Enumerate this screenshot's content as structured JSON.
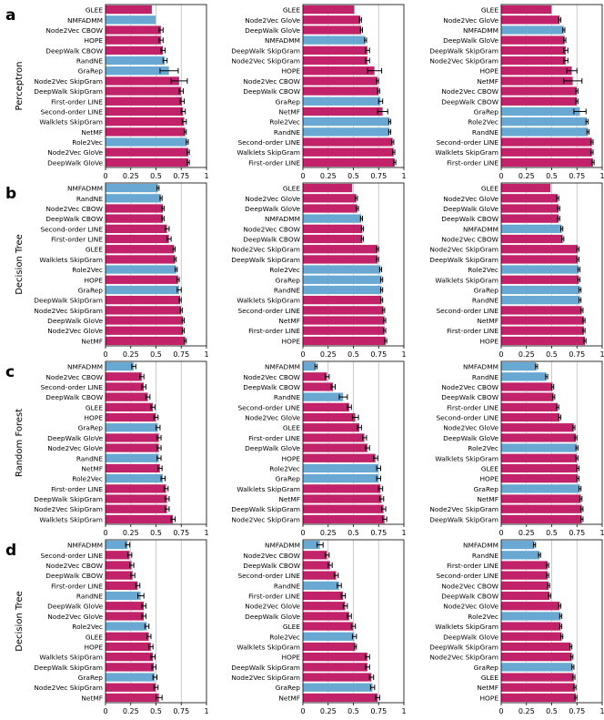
{
  "colors": {
    "magenta": "#c2226a",
    "blue": "#6aa8d4",
    "axis": "#000000",
    "grid": "#bdbdbd"
  },
  "row_panels": [
    {
      "letter": "a",
      "ylabel": "Perceptron"
    },
    {
      "letter": "b",
      "ylabel": "Decision Tree"
    },
    {
      "letter": "c",
      "ylabel": "Random Forest"
    },
    {
      "letter": "d",
      "ylabel": "Decision Tree"
    }
  ],
  "xticks": [
    "0",
    "0.25",
    "0.5",
    "0.75",
    "1"
  ],
  "chart_data": [
    {
      "type": "bar",
      "orientation": "horizontal",
      "row": "a",
      "col": 1,
      "xlim": [
        0,
        1
      ],
      "grid": true,
      "categories": [
        "GLEE",
        "NMFADMM",
        "Node2Vec CBOW",
        "HOPE",
        "DeepWalk CBOW",
        "RandNE",
        "GraRep",
        "Node2Vec SkipGram",
        "DeepWalk SkipGram",
        "First-order LINE",
        "Second-order LINE",
        "Walklets SkipGram",
        "NetMF",
        "Role2Vec",
        "Node2Vec GloVe",
        "DeepWalk GloVe"
      ],
      "values": [
        0.46,
        0.5,
        0.55,
        0.55,
        0.57,
        0.59,
        0.63,
        0.73,
        0.75,
        0.76,
        0.77,
        0.78,
        0.79,
        0.81,
        0.82,
        0.82
      ],
      "errors": [
        0,
        0,
        0.02,
        0.02,
        0.02,
        0.02,
        0.09,
        0.08,
        0.02,
        0.02,
        0.02,
        0.02,
        0.01,
        0.01,
        0.01,
        0.01
      ],
      "blue": [
        "NMFADMM",
        "RandNE",
        "GraRep",
        "Role2Vec"
      ]
    },
    {
      "type": "bar",
      "orientation": "horizontal",
      "row": "a",
      "col": 2,
      "xlim": [
        0,
        1
      ],
      "grid": true,
      "categories": [
        "GLEE",
        "Node2Vec GloVe",
        "DeepWalk GloVe",
        "NMFADMM",
        "DeepWalk SkipGram",
        "Node2Vec SkipGram",
        "HOPE",
        "Node2Vec CBOW",
        "DeepWalk CBOW",
        "GraRep",
        "NetMF",
        "Role2Vec",
        "RandNE",
        "Second-order LINE",
        "Walklets SkipGram",
        "First-order LINE"
      ],
      "values": [
        0.51,
        0.57,
        0.58,
        0.62,
        0.64,
        0.64,
        0.71,
        0.74,
        0.75,
        0.77,
        0.79,
        0.86,
        0.86,
        0.89,
        0.9,
        0.91
      ],
      "errors": [
        0,
        0.01,
        0.01,
        0.01,
        0.02,
        0.02,
        0.07,
        0.01,
        0.01,
        0.02,
        0.05,
        0.01,
        0.01,
        0.01,
        0.01,
        0.01
      ],
      "blue": [
        "NMFADMM",
        "GraRep",
        "Role2Vec",
        "RandNE"
      ]
    },
    {
      "type": "bar",
      "orientation": "horizontal",
      "row": "a",
      "col": 3,
      "xlim": [
        0,
        1
      ],
      "grid": true,
      "categories": [
        "GLEE",
        "Node2Vec GloVe",
        "NMFADMM",
        "DeepWalk GloVe",
        "DeepWalk SkipGram",
        "Node2Vec SkipGram",
        "HOPE",
        "NetMF",
        "Node2Vec CBOW",
        "DeepWalk CBOW",
        "GraRep",
        "Role2Vec",
        "RandNE",
        "Second-order LINE",
        "Walklets SkipGram",
        "First-order LINE"
      ],
      "values": [
        0.5,
        0.58,
        0.62,
        0.63,
        0.64,
        0.64,
        0.7,
        0.71,
        0.75,
        0.75,
        0.78,
        0.85,
        0.86,
        0.9,
        0.9,
        0.91
      ],
      "errors": [
        0,
        0.01,
        0.01,
        0.01,
        0.02,
        0.02,
        0.05,
        0.09,
        0.01,
        0.01,
        0.06,
        0.01,
        0.01,
        0.01,
        0.01,
        0.01
      ],
      "blue": [
        "NMFADMM",
        "GraRep",
        "Role2Vec",
        "RandNE"
      ]
    },
    {
      "type": "bar",
      "orientation": "horizontal",
      "row": "b",
      "col": 1,
      "xlim": [
        0,
        1
      ],
      "grid": true,
      "categories": [
        "NMFADMM",
        "RandNE",
        "Node2Vec CBOW",
        "DeepWalk CBOW",
        "Second-order LINE",
        "First-order LINE",
        "GLEE",
        "Walklets SkipGram",
        "Role2Vec",
        "HOPE",
        "GraRep",
        "DeepWalk SkipGram",
        "Node2Vec SkipGram",
        "DeepWalk GloVe",
        "Node2Vec GloVe",
        "NetMF"
      ],
      "values": [
        0.52,
        0.55,
        0.57,
        0.57,
        0.61,
        0.63,
        0.68,
        0.69,
        0.7,
        0.72,
        0.73,
        0.74,
        0.75,
        0.77,
        0.77,
        0.79
      ],
      "errors": [
        0.01,
        0.01,
        0.01,
        0.01,
        0.02,
        0.02,
        0.01,
        0.01,
        0.01,
        0.01,
        0.02,
        0.01,
        0.01,
        0.01,
        0.01,
        0.01
      ],
      "blue": [
        "NMFADMM",
        "RandNE",
        "Role2Vec",
        "GraRep"
      ]
    },
    {
      "type": "bar",
      "orientation": "horizontal",
      "row": "b",
      "col": 2,
      "xlim": [
        0,
        1
      ],
      "grid": true,
      "categories": [
        "GLEE",
        "Node2Vec GloVe",
        "DeepWalk GloVe",
        "NMFADMM",
        "Node2Vec CBOW",
        "DeepWalk CBOW",
        "Node2Vec SkipGram",
        "DeepWalk SkipGram",
        "Role2Vec",
        "GraRep",
        "RandNE",
        "Walklets SkipGram",
        "Second-order LINE",
        "NetMF",
        "First-order LINE",
        "HOPE"
      ],
      "values": [
        0.49,
        0.53,
        0.54,
        0.58,
        0.59,
        0.59,
        0.74,
        0.74,
        0.77,
        0.78,
        0.78,
        0.78,
        0.8,
        0.81,
        0.81,
        0.82
      ],
      "errors": [
        0,
        0.01,
        0.01,
        0.01,
        0.01,
        0.01,
        0.01,
        0.01,
        0.01,
        0.01,
        0.01,
        0.01,
        0.01,
        0.01,
        0.01,
        0.01
      ],
      "blue": [
        "NMFADMM",
        "Role2Vec",
        "GraRep",
        "RandNE"
      ]
    },
    {
      "type": "bar",
      "orientation": "horizontal",
      "row": "b",
      "col": 3,
      "xlim": [
        0,
        1
      ],
      "grid": true,
      "categories": [
        "GLEE",
        "Node2Vec GloVe",
        "DeepWalk GloVe",
        "DeepWalk CBOW",
        "NMFADMM",
        "Node2Vec CBOW",
        "Node2Vec SkipGram",
        "DeepWalk SkipGram",
        "Role2Vec",
        "Walklets SkipGram",
        "GraRep",
        "RandNE",
        "Second-order LINE",
        "NetMF",
        "First-order LINE",
        "HOPE"
      ],
      "values": [
        0.49,
        0.56,
        0.57,
        0.57,
        0.6,
        0.61,
        0.76,
        0.76,
        0.77,
        0.77,
        0.78,
        0.78,
        0.8,
        0.82,
        0.82,
        0.83
      ],
      "errors": [
        0,
        0.01,
        0.01,
        0.01,
        0.01,
        0.01,
        0.01,
        0.01,
        0.01,
        0.01,
        0.01,
        0.01,
        0.01,
        0.01,
        0.01,
        0.01
      ],
      "blue": [
        "NMFADMM",
        "Role2Vec",
        "GraRep",
        "RandNE"
      ]
    },
    {
      "type": "bar",
      "orientation": "horizontal",
      "row": "c",
      "col": 1,
      "xlim": [
        0,
        1
      ],
      "grid": true,
      "categories": [
        "NMFADMM",
        "Node2Vec CBOW",
        "Second-order LINE",
        "DeepWalk CBOW",
        "GLEE",
        "HOPE",
        "GraRep",
        "DeepWalk GloVe",
        "Node2Vec GloVe",
        "RandNE",
        "NetMF",
        "Role2Vec",
        "First-order LINE",
        "DeepWalk SkipGram",
        "Node2Vec SkipGram",
        "Walklets SkipGram"
      ],
      "values": [
        0.28,
        0.36,
        0.38,
        0.42,
        0.47,
        0.5,
        0.52,
        0.53,
        0.53,
        0.53,
        0.54,
        0.57,
        0.6,
        0.61,
        0.61,
        0.67
      ],
      "errors": [
        0.02,
        0.02,
        0.02,
        0.02,
        0.02,
        0.02,
        0.02,
        0.02,
        0.02,
        0.02,
        0.02,
        0.02,
        0.02,
        0.02,
        0.02,
        0.02
      ],
      "blue": [
        "NMFADMM",
        "GraRep",
        "RandNE",
        "Role2Vec"
      ]
    },
    {
      "type": "bar",
      "orientation": "horizontal",
      "row": "c",
      "col": 2,
      "xlim": [
        0,
        1
      ],
      "grid": true,
      "categories": [
        "NMFADMM",
        "Node2Vec CBOW",
        "DeepWalk CBOW",
        "RandNE",
        "Second-order LINE",
        "Node2Vec GloVe",
        "GLEE",
        "First-order LINE",
        "DeepWalk GloVe",
        "HOPE",
        "Role2Vec",
        "GraRep",
        "Walklets SkipGram",
        "NetMF",
        "DeepWalk SkipGram",
        "Node2Vec SkipGram"
      ],
      "values": [
        0.13,
        0.24,
        0.3,
        0.4,
        0.46,
        0.52,
        0.56,
        0.61,
        0.64,
        0.72,
        0.75,
        0.75,
        0.77,
        0.78,
        0.8,
        0.81
      ],
      "errors": [
        0.01,
        0.02,
        0.02,
        0.04,
        0.02,
        0.03,
        0.02,
        0.02,
        0.02,
        0.02,
        0.02,
        0.02,
        0.02,
        0.02,
        0.02,
        0.02
      ],
      "blue": [
        "NMFADMM",
        "RandNE",
        "Role2Vec",
        "GraRep"
      ]
    },
    {
      "type": "bar",
      "orientation": "horizontal",
      "row": "c",
      "col": 3,
      "xlim": [
        0,
        1
      ],
      "grid": true,
      "categories": [
        "NMFADMM",
        "RandNE",
        "Node2Vec CBOW",
        "DeepWalk CBOW",
        "First-order LINE",
        "Second-order LINE",
        "Node2Vec GloVe",
        "DeepWalk GloVe",
        "Role2Vec",
        "Walklets SkipGram",
        "GLEE",
        "HOPE",
        "GraRep",
        "NetMF",
        "Node2Vec SkipGram",
        "DeepWalk SkipGram"
      ],
      "values": [
        0.35,
        0.45,
        0.51,
        0.52,
        0.56,
        0.58,
        0.72,
        0.74,
        0.75,
        0.75,
        0.76,
        0.76,
        0.78,
        0.79,
        0.8,
        0.8
      ],
      "errors": [
        0.01,
        0.01,
        0.01,
        0.01,
        0.01,
        0.01,
        0.01,
        0.01,
        0.01,
        0.01,
        0.01,
        0.01,
        0.01,
        0.01,
        0.01,
        0.01
      ],
      "blue": [
        "NMFADMM",
        "RandNE",
        "Role2Vec",
        "GraRep"
      ]
    },
    {
      "type": "bar",
      "orientation": "horizontal",
      "row": "d",
      "col": 1,
      "xlim": [
        0,
        1
      ],
      "grid": true,
      "categories": [
        "NMFADMM",
        "Second-order LINE",
        "Node2Vec CBOW",
        "DeepWalk CBOW",
        "First-order LINE",
        "RandNE",
        "DeepWalk GloVe",
        "Node2Vec GloVe",
        "Role2Vec",
        "GLEE",
        "HOPE",
        "Walklets SkipGram",
        "DeepWalk SkipGram",
        "GraRep",
        "Node2Vec SkipGram",
        "NetMF"
      ],
      "values": [
        0.22,
        0.24,
        0.26,
        0.27,
        0.32,
        0.35,
        0.38,
        0.38,
        0.41,
        0.43,
        0.45,
        0.47,
        0.48,
        0.49,
        0.5,
        0.53
      ],
      "errors": [
        0.02,
        0.02,
        0.02,
        0.02,
        0.02,
        0.03,
        0.02,
        0.02,
        0.02,
        0.02,
        0.02,
        0.02,
        0.02,
        0.02,
        0.02,
        0.03
      ],
      "blue": [
        "NMFADMM",
        "RandNE",
        "Role2Vec",
        "GraRep"
      ]
    },
    {
      "type": "bar",
      "orientation": "horizontal",
      "row": "d",
      "col": 2,
      "xlim": [
        0,
        1
      ],
      "grid": true,
      "categories": [
        "NMFADMM",
        "Node2Vec CBOW",
        "DeepWalk CBOW",
        "Second-order LINE",
        "RandNE",
        "First-order LINE",
        "Node2Vec GloVe",
        "DeepWalk GloVe",
        "GLEE",
        "Role2Vec",
        "Walklets SkipGram",
        "HOPE",
        "DeepWalk SkipGram",
        "Node2Vec SkipGram",
        "GraRep",
        "NetMF"
      ],
      "values": [
        0.17,
        0.24,
        0.27,
        0.33,
        0.36,
        0.4,
        0.42,
        0.46,
        0.5,
        0.51,
        0.52,
        0.64,
        0.64,
        0.68,
        0.69,
        0.74
      ],
      "errors": [
        0.03,
        0.02,
        0.02,
        0.02,
        0.02,
        0.02,
        0.02,
        0.02,
        0.02,
        0.02,
        0.01,
        0.02,
        0.02,
        0.02,
        0.02,
        0.02
      ],
      "blue": [
        "NMFADMM",
        "RandNE",
        "Role2Vec",
        "GraRep"
      ]
    },
    {
      "type": "bar",
      "orientation": "horizontal",
      "row": "d",
      "col": 3,
      "xlim": [
        0,
        1
      ],
      "grid": true,
      "categories": [
        "NMFADMM",
        "RandNE",
        "First-order LINE",
        "Second-order LINE",
        "Node2Vec CBOW",
        "DeepWalk CBOW",
        "Node2Vec GloVe",
        "Role2Vec",
        "Walklets SkipGram",
        "DeepWalk GloVe",
        "DeepWalk SkipGram",
        "Node2Vec SkipGram",
        "GraRep",
        "GLEE",
        "NetMF",
        "HOPE"
      ],
      "values": [
        0.33,
        0.38,
        0.46,
        0.46,
        0.47,
        0.48,
        0.58,
        0.59,
        0.59,
        0.6,
        0.69,
        0.7,
        0.71,
        0.72,
        0.73,
        0.74
      ],
      "errors": [
        0.01,
        0.01,
        0.01,
        0.01,
        0.01,
        0.01,
        0.01,
        0.01,
        0.01,
        0.01,
        0.01,
        0.01,
        0.01,
        0.01,
        0.01,
        0.01
      ],
      "blue": [
        "NMFADMM",
        "RandNE",
        "Role2Vec",
        "GraRep"
      ]
    }
  ]
}
